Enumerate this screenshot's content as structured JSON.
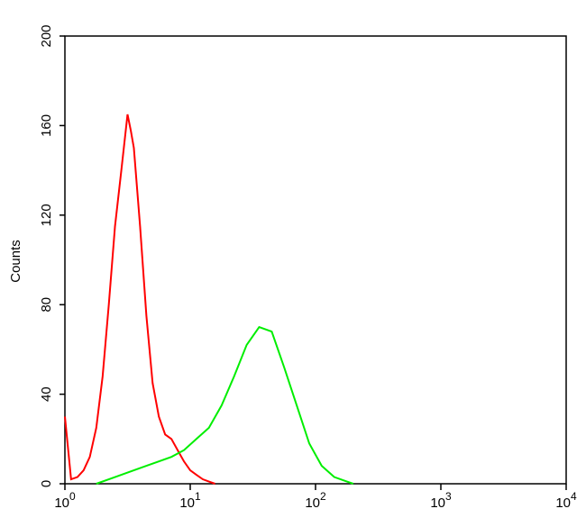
{
  "chart_data": {
    "type": "line",
    "y_label": "Counts",
    "xscale": "log",
    "xlim": [
      1,
      10000
    ],
    "xticks": [
      {
        "value": 1,
        "label": "10",
        "exponent": "0"
      },
      {
        "value": 10,
        "label": "10",
        "exponent": "1"
      },
      {
        "value": 100,
        "label": "10",
        "exponent": "2"
      },
      {
        "value": 1000,
        "label": "10",
        "exponent": "3"
      },
      {
        "value": 10000,
        "label": "10",
        "exponent": "4"
      }
    ],
    "ylim": [
      0,
      200
    ],
    "yticks": [
      0,
      40,
      80,
      120,
      160,
      200
    ],
    "series": [
      {
        "color": "#ff0000",
        "x": [
          1,
          1.12,
          1.26,
          1.41,
          1.58,
          1.78,
          2.0,
          2.24,
          2.51,
          2.82,
          3.16,
          3.35,
          3.55,
          3.98,
          4.47,
          5.01,
          5.62,
          6.31,
          7.08,
          7.94,
          8.91,
          10,
          11.2,
          12.6,
          14.1,
          15.8
        ],
        "values": [
          30,
          2,
          3,
          6,
          12,
          25,
          48,
          80,
          115,
          140,
          165,
          158,
          150,
          115,
          75,
          45,
          30,
          22,
          20,
          15,
          10,
          6,
          4,
          2,
          1,
          0
        ]
      },
      {
        "color": "#00ee00",
        "x": [
          1.78,
          2.24,
          2.82,
          3.55,
          4.47,
          5.62,
          7.08,
          8.91,
          11.2,
          14.1,
          17.8,
          22.4,
          28.2,
          35.5,
          44.7,
          56.2,
          70.8,
          89.1,
          112,
          141,
          178,
          200
        ],
        "values": [
          0,
          2,
          4,
          6,
          8,
          10,
          12,
          15,
          20,
          25,
          35,
          48,
          62,
          70,
          68,
          52,
          35,
          18,
          8,
          3,
          1,
          0
        ]
      }
    ]
  }
}
